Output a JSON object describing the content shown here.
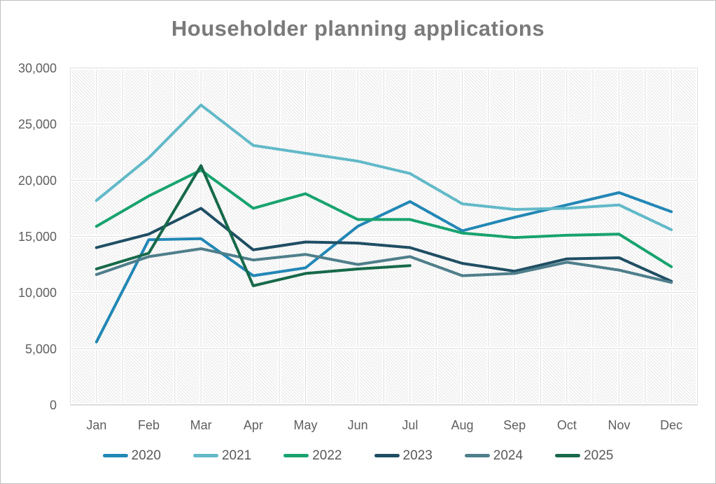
{
  "chart_data": {
    "type": "line",
    "title": "Householder planning applications",
    "categories": [
      "Jan",
      "Feb",
      "Mar",
      "Apr",
      "May",
      "Jun",
      "Jul",
      "Aug",
      "Sep",
      "Oct",
      "Nov",
      "Dec"
    ],
    "series": [
      {
        "name": "2020",
        "color": "#2287b5",
        "values": [
          5600,
          14700,
          14800,
          11500,
          12200,
          15900,
          18100,
          15500,
          16700,
          17800,
          18900,
          17200
        ]
      },
      {
        "name": "2021",
        "color": "#62b9c8",
        "values": [
          18200,
          22000,
          26700,
          23100,
          22400,
          21700,
          20600,
          17900,
          17400,
          17500,
          17800,
          15600
        ]
      },
      {
        "name": "2022",
        "color": "#18a36e",
        "values": [
          15900,
          18600,
          20900,
          17500,
          18800,
          16500,
          16500,
          15300,
          14900,
          15100,
          15200,
          12300
        ]
      },
      {
        "name": "2023",
        "color": "#1f4e63",
        "values": [
          14000,
          15200,
          17500,
          13800,
          14500,
          14400,
          14000,
          12600,
          11900,
          13000,
          13100,
          11000
        ]
      },
      {
        "name": "2024",
        "color": "#4f7e8b",
        "values": [
          11600,
          13200,
          13900,
          12900,
          13400,
          12500,
          13200,
          11500,
          11700,
          12700,
          12000,
          10900
        ]
      },
      {
        "name": "2025",
        "color": "#17694a",
        "values": [
          12100,
          13500,
          21300,
          10600,
          11700,
          12100,
          12400,
          null,
          null,
          null,
          null,
          null
        ]
      }
    ],
    "ylim": [
      0,
      30000
    ],
    "ytick_step": 5000,
    "ytick_labels": [
      "0",
      "5,000",
      "10,000",
      "15,000",
      "20,000",
      "25,000",
      "30,000"
    ],
    "grid": "horizontal major lines every 5000; vertical lines every half category; hatched plot background",
    "legend_position": "bottom",
    "colors_note": {
      "axis_label_color": "#5f5f5f",
      "title_color": "#7a7a7a",
      "gridline_color": "#dedede"
    }
  }
}
